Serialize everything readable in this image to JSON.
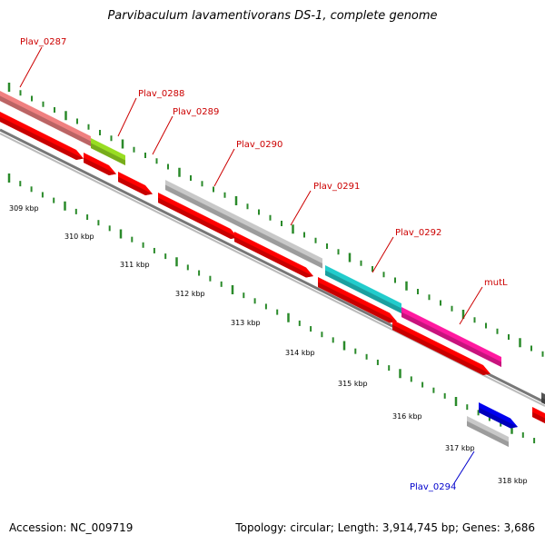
{
  "title": "Parvibaculum lavamentivorans DS-1, complete genome",
  "footer": {
    "accession": "Accession: NC_009719",
    "summary": "Topology: circular; Length: 3,914,745 bp; Genes: 3,686"
  },
  "gene_labels": [
    "Plav_0287",
    "Plav_0288",
    "Plav_0289",
    "Plav_0290",
    "Plav_0291",
    "Plav_0292",
    "mutL",
    "Plav_0294"
  ],
  "label_colors": {
    "forward": "#cc0000",
    "reverse": "#0000cc"
  },
  "kbp_ticks": [
    "309 kbp",
    "310 kbp",
    "311 kbp",
    "312 kbp",
    "313 kbp",
    "314 kbp",
    "315 kbp",
    "316 kbp",
    "317 kbp",
    "318 kbp"
  ],
  "feature_colors": {
    "Plav_0287": "#f08080",
    "Plav_0288": "#99dd22",
    "Plav_0289": "#ff0000",
    "Plav_0290": "#c8c8c8",
    "Plav_0291": "#c8c8c8",
    "Plav_0292": "#22cccc",
    "mutL": "#ff1aa0",
    "Plav_0294": "#c8c8c8",
    "cds": "#ff0000",
    "blue_feature": "#0000ee",
    "backbone": "#808080",
    "tick": "#2a8a2a"
  }
}
